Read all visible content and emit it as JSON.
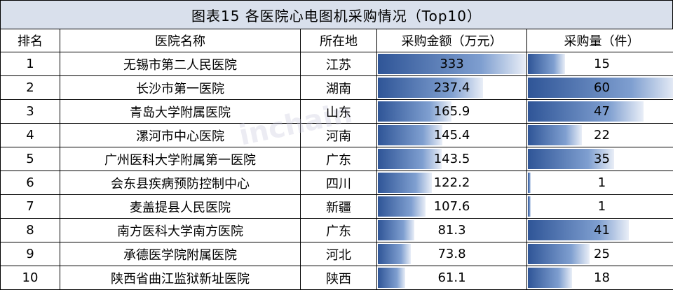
{
  "title": "图表15   各医院心电图机采购情况（Top10）",
  "headers": {
    "rank": "排名",
    "name": "医院名称",
    "location": "所在地",
    "amount": "采购金额（万元）",
    "quantity": "采购量（件）"
  },
  "rows": [
    {
      "rank": "1",
      "name": "无锡市第二人民医院",
      "location": "江苏",
      "amount": "333",
      "quantity": "15"
    },
    {
      "rank": "2",
      "name": "长沙市第一医院",
      "location": "湖南",
      "amount": "237.4",
      "quantity": "60"
    },
    {
      "rank": "3",
      "name": "青岛大学附属医院",
      "location": "山东",
      "amount": "165.9",
      "quantity": "47"
    },
    {
      "rank": "4",
      "name": "漯河市中心医院",
      "location": "河南",
      "amount": "145.4",
      "quantity": "22"
    },
    {
      "rank": "5",
      "name": "广州医科大学附属第一医院",
      "location": "广东",
      "amount": "143.5",
      "quantity": "35"
    },
    {
      "rank": "6",
      "name": "会东县疾病预防控制中心",
      "location": "四川",
      "amount": "122.2",
      "quantity": "1"
    },
    {
      "rank": "7",
      "name": "麦盖提县人民医院",
      "location": "新疆",
      "amount": "107.6",
      "quantity": "1"
    },
    {
      "rank": "8",
      "name": "南方医科大学南方医院",
      "location": "广东",
      "amount": "81.3",
      "quantity": "41"
    },
    {
      "rank": "9",
      "name": "承德医学院附属医院",
      "location": "河北",
      "amount": "73.8",
      "quantity": "25"
    },
    {
      "rank": "10",
      "name": "陕西省曲江监狱新址医院",
      "location": "陕西",
      "amount": "61.1",
      "quantity": "18"
    }
  ],
  "watermark": "inchain"
}
